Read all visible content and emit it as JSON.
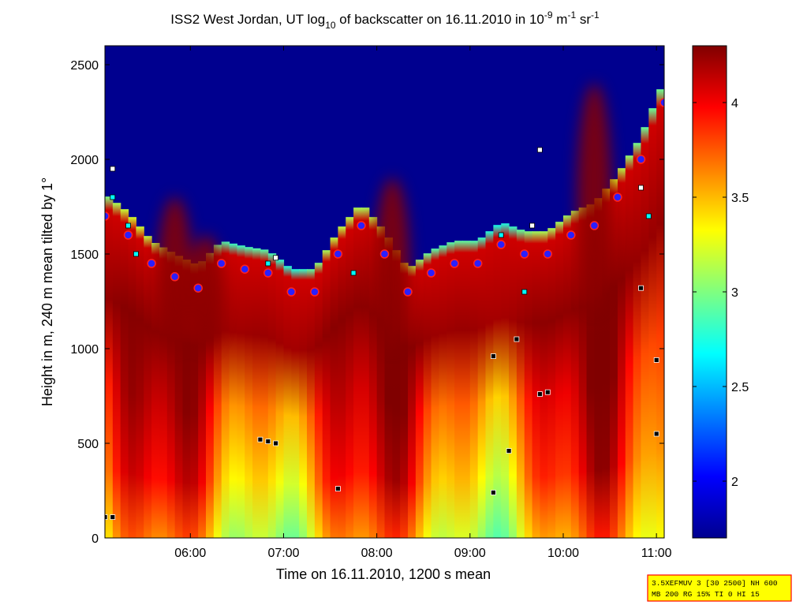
{
  "chart_data": {
    "type": "heatmap",
    "title": {
      "part1": "ISS2 West Jordan, UT log",
      "sub1": "10",
      "part2": " of backscatter on 16.11.2010 in 10",
      "sup1": "-9",
      "part3": " m",
      "sup2": "-1",
      "part4": " sr",
      "sup3": "-1"
    },
    "xlabel": "Time on 16.11.2010, 1200 s mean",
    "ylabel": "Height in m, 240 m mean tilted by 1°",
    "xlim": [
      "05:05",
      "11:05"
    ],
    "ylim": [
      0,
      2600
    ],
    "x_ticks": [
      "06:00",
      "07:00",
      "08:00",
      "09:00",
      "10:00",
      "11:00"
    ],
    "y_ticks": [
      "0",
      "500",
      "1000",
      "1500",
      "2000",
      "2500"
    ],
    "colorbar": {
      "range": [
        1.7,
        4.3
      ],
      "ticks": [
        "2",
        "2.5",
        "3",
        "3.5",
        "4"
      ],
      "colormap": "jet"
    },
    "mixing_layer_top_m": [
      {
        "t": "05:05",
        "h": 1700
      },
      {
        "t": "05:20",
        "h": 1600
      },
      {
        "t": "05:35",
        "h": 1450
      },
      {
        "t": "05:50",
        "h": 1380
      },
      {
        "t": "06:05",
        "h": 1320
      },
      {
        "t": "06:20",
        "h": 1450
      },
      {
        "t": "06:35",
        "h": 1420
      },
      {
        "t": "06:50",
        "h": 1400
      },
      {
        "t": "07:05",
        "h": 1300
      },
      {
        "t": "07:20",
        "h": 1300
      },
      {
        "t": "07:35",
        "h": 1500
      },
      {
        "t": "07:50",
        "h": 1650
      },
      {
        "t": "08:05",
        "h": 1500
      },
      {
        "t": "08:20",
        "h": 1300
      },
      {
        "t": "08:35",
        "h": 1400
      },
      {
        "t": "08:50",
        "h": 1450
      },
      {
        "t": "09:05",
        "h": 1450
      },
      {
        "t": "09:20",
        "h": 1550
      },
      {
        "t": "09:35",
        "h": 1500
      },
      {
        "t": "09:50",
        "h": 1500
      },
      {
        "t": "10:05",
        "h": 1600
      },
      {
        "t": "10:20",
        "h": 1650
      },
      {
        "t": "10:35",
        "h": 1800
      },
      {
        "t": "10:50",
        "h": 2000
      },
      {
        "t": "11:05",
        "h": 2300
      }
    ],
    "aerosol_layers": [
      {
        "t": "05:50",
        "bottom": 1000,
        "top": 1800
      },
      {
        "t": "06:10",
        "bottom": 1000,
        "top": 1600
      },
      {
        "t": "08:10",
        "bottom": 1000,
        "top": 1900
      },
      {
        "t": "10:20",
        "bottom": 1200,
        "top": 2400
      }
    ],
    "cyan_markers": [
      {
        "t": "05:10",
        "h": 1800
      },
      {
        "t": "05:20",
        "h": 1650
      },
      {
        "t": "05:25",
        "h": 1500
      },
      {
        "t": "06:50",
        "h": 1450
      },
      {
        "t": "07:45",
        "h": 1400
      },
      {
        "t": "09:20",
        "h": 1600
      },
      {
        "t": "09:35",
        "h": 1300
      },
      {
        "t": "10:55",
        "h": 1700
      }
    ],
    "white_markers": [
      {
        "t": "05:10",
        "h": 1950
      },
      {
        "t": "06:55",
        "h": 1480
      },
      {
        "t": "09:40",
        "h": 1650
      },
      {
        "t": "09:45",
        "h": 2050
      },
      {
        "t": "10:50",
        "h": 1850
      }
    ],
    "black_markers": [
      {
        "t": "05:05",
        "h": 110
      },
      {
        "t": "05:10",
        "h": 110
      },
      {
        "t": "06:45",
        "h": 520
      },
      {
        "t": "06:50",
        "h": 510
      },
      {
        "t": "06:55",
        "h": 500
      },
      {
        "t": "07:35",
        "h": 260
      },
      {
        "t": "09:15",
        "h": 960
      },
      {
        "t": "09:15",
        "h": 240
      },
      {
        "t": "09:25",
        "h": 460
      },
      {
        "t": "09:30",
        "h": 1050
      },
      {
        "t": "09:45",
        "h": 760
      },
      {
        "t": "09:50",
        "h": 770
      },
      {
        "t": "10:50",
        "h": 1320
      },
      {
        "t": "11:00",
        "h": 940
      },
      {
        "t": "11:00",
        "h": 550
      }
    ],
    "info_box": {
      "line1": "3.5XEFMUV 3 [30 2500] NH 600",
      "line2": "MB 200 RG 15% TI 0 HI 15"
    }
  },
  "colors": {
    "background": "#00008f",
    "frame": "#000000",
    "marker_fill": "#2a1fff",
    "marker_ring": "#ff2020",
    "info_box_fill": "#ffff00",
    "info_box_border": "#ff0000"
  }
}
